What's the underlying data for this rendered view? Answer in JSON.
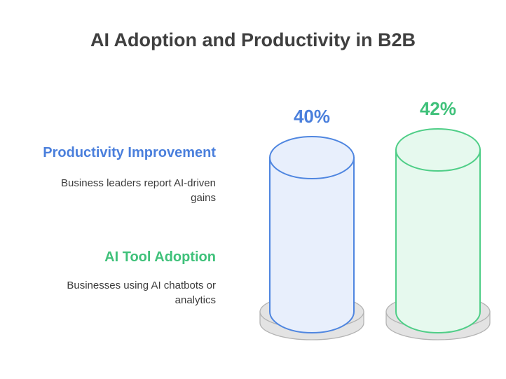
{
  "chart_data": {
    "type": "bar",
    "title": "AI Adoption and Productivity in B2B",
    "categories": [
      "Productivity Improvement",
      "AI Tool Adoption"
    ],
    "values": [
      40,
      42
    ],
    "value_labels": [
      "40%",
      "42%"
    ],
    "descriptions": [
      "Business leaders report AI-driven gains",
      "Businesses using AI chatbots or analytics"
    ],
    "colors": {
      "productivity_stroke": "#4f86e0",
      "productivity_fill": "#e8effc",
      "productivity_text": "#4a7fdc",
      "adoption_stroke": "#4fce87",
      "adoption_fill": "#e6f9ee",
      "adoption_text": "#3fc17a",
      "base_fill": "#e3e3e3",
      "base_stroke": "#b3b3b3"
    },
    "legend_position": "left"
  }
}
